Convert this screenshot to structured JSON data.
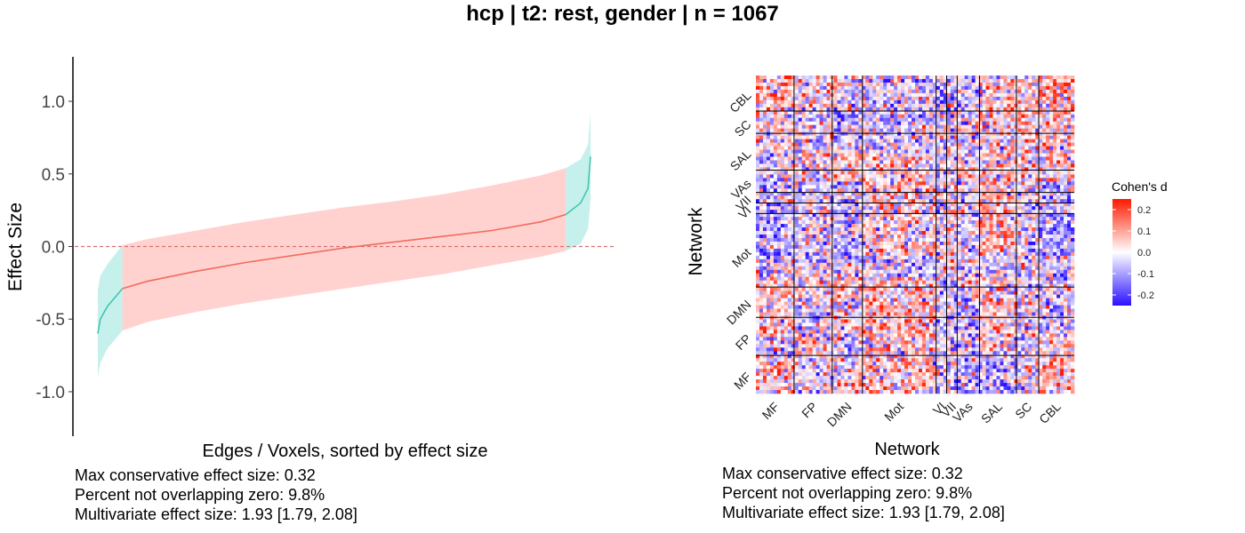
{
  "title": "hcp | t2: rest, gender | n = 1067",
  "colors": {
    "nonsig_fill": "#c6f0ec",
    "nonsig_line": "#40c8b0",
    "sig_fill": "#ffd2d0",
    "sig_line": "#f26b5e",
    "zero_line": "#d4706a",
    "heat_low": "#2a10ff",
    "heat_mid": "#ffffff",
    "heat_high": "#ff1a00",
    "block_border": "#000000"
  },
  "chart_data": [
    {
      "type": "line",
      "xlabel": "Edges / Voxels, sorted by effect size",
      "ylabel": "Effect Size",
      "ylim": [
        -1.3,
        1.3
      ],
      "yticks": [
        "-1.0",
        "-0.5",
        "0.0",
        "0.5",
        "1.0"
      ],
      "ytick_values": [
        -1.0,
        -0.5,
        0.0,
        0.5,
        1.0
      ],
      "reference_line_y": 0.0,
      "x_fraction": [
        0.0,
        0.005,
        0.02,
        0.05,
        0.1,
        0.2,
        0.3,
        0.4,
        0.5,
        0.6,
        0.7,
        0.8,
        0.9,
        0.95,
        0.98,
        0.995,
        1.0
      ],
      "estimate": [
        -0.6,
        -0.5,
        -0.41,
        -0.29,
        -0.24,
        -0.17,
        -0.11,
        -0.06,
        -0.01,
        0.03,
        0.07,
        0.11,
        0.17,
        0.22,
        0.3,
        0.4,
        0.62
      ],
      "ci_lower": [
        -0.9,
        -0.8,
        -0.7,
        -0.58,
        -0.52,
        -0.45,
        -0.39,
        -0.34,
        -0.29,
        -0.24,
        -0.19,
        -0.13,
        -0.07,
        -0.03,
        0.02,
        0.12,
        0.32
      ],
      "ci_upper": [
        -0.3,
        -0.2,
        -0.12,
        0.01,
        0.05,
        0.11,
        0.17,
        0.22,
        0.27,
        0.31,
        0.36,
        0.42,
        0.49,
        0.54,
        0.6,
        0.7,
        0.92
      ],
      "nonsig_low_end_fraction": 0.05,
      "nonsig_high_start_fraction": 0.95,
      "stats": [
        "Max conservative effect size: 0.32",
        "Percent not overlapping zero: 9.8%",
        "Multivariate effect size: 1.93 [1.79, 2.08]"
      ]
    },
    {
      "type": "heatmap",
      "xlabel": "Network",
      "ylabel": "Network",
      "networks": [
        "MF",
        "FP",
        "DMN",
        "Mot",
        "VI",
        "VII",
        "VAs",
        "SAL",
        "SC",
        "CBL"
      ],
      "network_weights": [
        29,
        29,
        23,
        56,
        8,
        8,
        17,
        28,
        17,
        27
      ],
      "block_means": [
        [
          0.05,
          -0.02,
          0.03,
          0.04,
          -0.03,
          -0.02,
          -0.05,
          -0.03,
          0.02,
          0.06
        ],
        [
          -0.02,
          0.03,
          -0.04,
          0.02,
          0.01,
          -0.02,
          -0.03,
          0.02,
          -0.02,
          0.01
        ],
        [
          0.03,
          -0.04,
          0.02,
          0.06,
          -0.04,
          -0.05,
          -0.06,
          0.05,
          -0.03,
          -0.02
        ],
        [
          0.04,
          0.02,
          0.06,
          0.05,
          -0.06,
          -0.07,
          0.03,
          0.04,
          -0.04,
          -0.03
        ],
        [
          -0.03,
          0.01,
          -0.04,
          -0.06,
          0.05,
          -0.02,
          -0.04,
          -0.03,
          -0.02,
          -0.05
        ],
        [
          -0.02,
          -0.02,
          -0.05,
          -0.07,
          -0.02,
          0.04,
          0.02,
          -0.04,
          -0.03,
          -0.05
        ],
        [
          -0.05,
          -0.03,
          -0.06,
          0.03,
          -0.04,
          0.02,
          -0.02,
          0.05,
          -0.02,
          -0.06
        ],
        [
          -0.03,
          0.02,
          0.05,
          0.04,
          -0.03,
          -0.04,
          0.05,
          0.03,
          0.02,
          0.03
        ],
        [
          0.02,
          -0.02,
          -0.03,
          -0.04,
          -0.02,
          -0.03,
          -0.02,
          0.02,
          0.05,
          0.04
        ],
        [
          0.06,
          0.01,
          -0.02,
          -0.03,
          -0.05,
          -0.05,
          -0.06,
          0.03,
          0.04,
          0.08
        ]
      ],
      "legend_title": "Cohen's d",
      "legend_ticks": [
        "0.2",
        "0.1",
        "0.0",
        "-0.1",
        "-0.2"
      ],
      "legend_tick_values": [
        0.2,
        0.1,
        0.0,
        -0.1,
        -0.2
      ],
      "color_range": [
        -0.25,
        0.25
      ],
      "stats": [
        "Max conservative effect size: 0.32",
        "Percent not overlapping zero: 9.8%",
        "Multivariate effect size: 1.93 [1.79, 2.08]"
      ]
    }
  ]
}
